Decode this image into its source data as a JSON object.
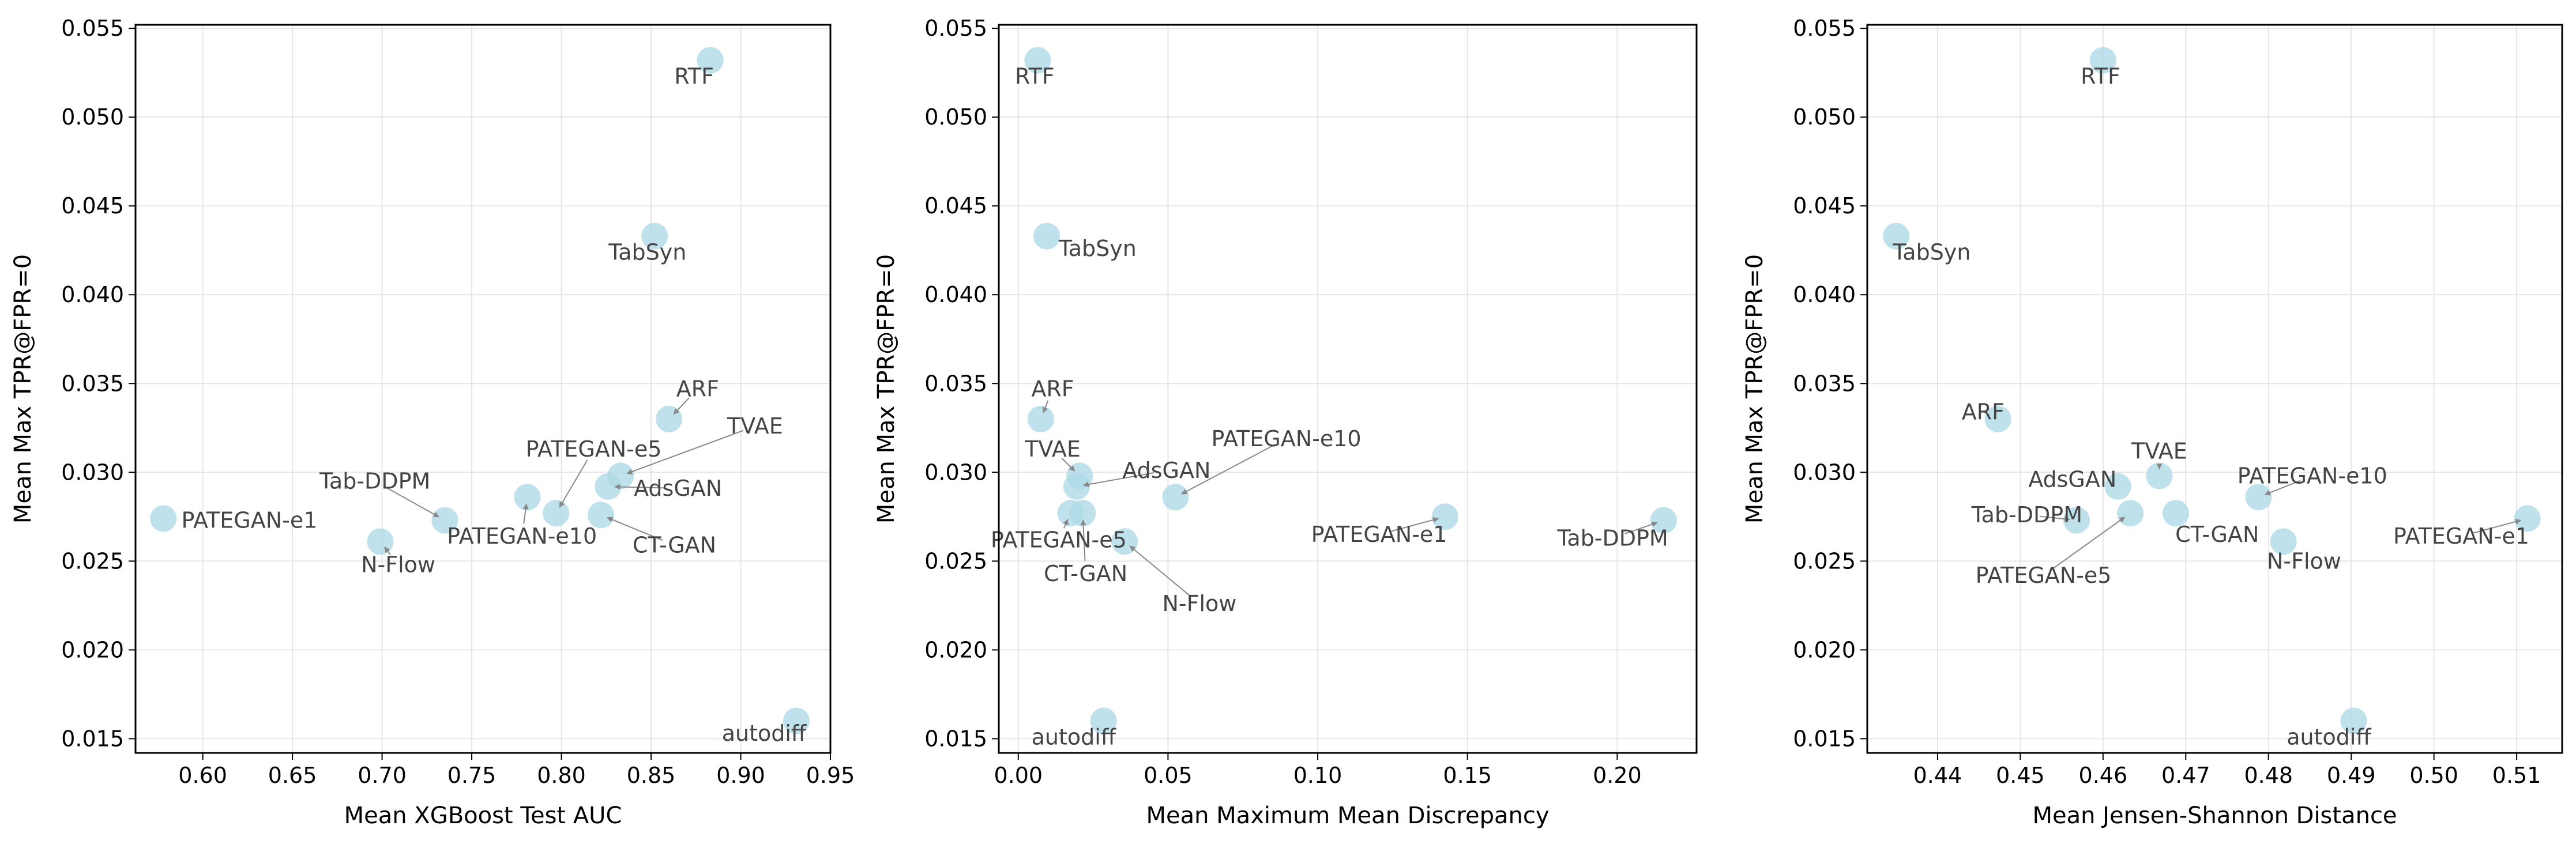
{
  "style": {
    "marker_color": "#add8e6",
    "grid_color": "#e6e6e6",
    "annotation_color": "#444444",
    "arrow_color": "#888888"
  },
  "chart_data": [
    {
      "type": "scatter",
      "title": "",
      "xlabel": "Mean XGBoost Test AUC",
      "ylabel": "Mean Max TPR@FPR=0",
      "xlim": [
        0.5625,
        0.95
      ],
      "ylim": [
        0.0142,
        0.0552
      ],
      "xticks": [
        0.6,
        0.65,
        0.7,
        0.75,
        0.8,
        0.85,
        0.9,
        0.95
      ],
      "xtick_labels": [
        "0.60",
        "0.65",
        "0.70",
        "0.75",
        "0.80",
        "0.85",
        "0.90",
        "0.95"
      ],
      "yticks": [
        0.015,
        0.02,
        0.025,
        0.03,
        0.035,
        0.04,
        0.045,
        0.05,
        0.055
      ],
      "ytick_labels": [
        "0.015",
        "0.020",
        "0.025",
        "0.030",
        "0.035",
        "0.040",
        "0.045",
        "0.050",
        "0.055"
      ],
      "grid": true,
      "points": [
        {
          "label": "RTF",
          "x": 0.883,
          "y": 0.0532,
          "text_x": 0.874,
          "text_y": 0.0523,
          "arrow": false
        },
        {
          "label": "TabSyn",
          "x": 0.852,
          "y": 0.0433,
          "text_x": 0.848,
          "text_y": 0.0424,
          "arrow": false
        },
        {
          "label": "ARF",
          "x": 0.86,
          "y": 0.033,
          "text_x": 0.876,
          "text_y": 0.0347,
          "arrow": true
        },
        {
          "label": "TVAE",
          "x": 0.833,
          "y": 0.0298,
          "text_x": 0.908,
          "text_y": 0.0326,
          "arrow": true
        },
        {
          "label": "PATEGAN-e5",
          "x": 0.797,
          "y": 0.0277,
          "text_x": 0.818,
          "text_y": 0.0313,
          "arrow": true
        },
        {
          "label": "AdsGAN",
          "x": 0.826,
          "y": 0.0292,
          "text_x": 0.865,
          "text_y": 0.0291,
          "arrow": true
        },
        {
          "label": "CT-GAN",
          "x": 0.822,
          "y": 0.0276,
          "text_x": 0.863,
          "text_y": 0.0259,
          "arrow": true
        },
        {
          "label": "PATEGAN-e10",
          "x": 0.781,
          "y": 0.0286,
          "text_x": 0.778,
          "text_y": 0.0264,
          "arrow": true
        },
        {
          "label": "Tab-DDPM",
          "x": 0.735,
          "y": 0.0273,
          "text_x": 0.696,
          "text_y": 0.0295,
          "arrow": true
        },
        {
          "label": "PATEGAN-e1",
          "x": 0.578,
          "y": 0.0274,
          "text_x": 0.626,
          "text_y": 0.0273,
          "arrow": false
        },
        {
          "label": "N-Flow",
          "x": 0.699,
          "y": 0.0261,
          "text_x": 0.709,
          "text_y": 0.0248,
          "arrow": true
        },
        {
          "label": "autodiff",
          "x": 0.931,
          "y": 0.016,
          "text_x": 0.913,
          "text_y": 0.0153,
          "arrow": false
        }
      ]
    },
    {
      "type": "scatter",
      "title": "",
      "xlabel": "Mean Maximum Mean Discrepancy",
      "ylabel": "Mean Max TPR@FPR=0",
      "xlim": [
        -0.0065,
        0.2265
      ],
      "ylim": [
        0.0142,
        0.0552
      ],
      "xticks": [
        0.0,
        0.05,
        0.1,
        0.15,
        0.2
      ],
      "xtick_labels": [
        "0.00",
        "0.05",
        "0.10",
        "0.15",
        "0.20"
      ],
      "yticks": [
        0.015,
        0.02,
        0.025,
        0.03,
        0.035,
        0.04,
        0.045,
        0.05,
        0.055
      ],
      "ytick_labels": [
        "0.015",
        "0.020",
        "0.025",
        "0.030",
        "0.035",
        "0.040",
        "0.045",
        "0.050",
        "0.055"
      ],
      "grid": true,
      "points": [
        {
          "label": "RTF",
          "x": 0.0065,
          "y": 0.0532,
          "text_x": 0.0055,
          "text_y": 0.0523,
          "arrow": false
        },
        {
          "label": "TabSyn",
          "x": 0.0095,
          "y": 0.0433,
          "text_x": 0.0265,
          "text_y": 0.0426,
          "arrow": false
        },
        {
          "label": "ARF",
          "x": 0.0075,
          "y": 0.033,
          "text_x": 0.0115,
          "text_y": 0.0347,
          "arrow": true
        },
        {
          "label": "TVAE",
          "x": 0.0205,
          "y": 0.0298,
          "text_x": 0.0115,
          "text_y": 0.0313,
          "arrow": true
        },
        {
          "label": "AdsGAN",
          "x": 0.0195,
          "y": 0.0292,
          "text_x": 0.0495,
          "text_y": 0.0301,
          "arrow": true
        },
        {
          "label": "PATEGAN-e10",
          "x": 0.0525,
          "y": 0.0286,
          "text_x": 0.0895,
          "text_y": 0.0319,
          "arrow": true
        },
        {
          "label": "PATEGAN-e5",
          "x": 0.0175,
          "y": 0.0277,
          "text_x": 0.0135,
          "text_y": 0.0262,
          "arrow": true
        },
        {
          "label": "CT-GAN",
          "x": 0.0215,
          "y": 0.0277,
          "text_x": 0.0225,
          "text_y": 0.0243,
          "arrow": true
        },
        {
          "label": "N-Flow",
          "x": 0.0355,
          "y": 0.0261,
          "text_x": 0.0605,
          "text_y": 0.0226,
          "arrow": true
        },
        {
          "label": "PATEGAN-e1",
          "x": 0.1425,
          "y": 0.0275,
          "text_x": 0.1205,
          "text_y": 0.0265,
          "arrow": true
        },
        {
          "label": "Tab-DDPM",
          "x": 0.2155,
          "y": 0.0273,
          "text_x": 0.1985,
          "text_y": 0.0263,
          "arrow": true
        },
        {
          "label": "autodiff",
          "x": 0.0285,
          "y": 0.016,
          "text_x": 0.0185,
          "text_y": 0.0151,
          "arrow": false
        }
      ]
    },
    {
      "type": "scatter",
      "title": "",
      "xlabel": "Mean Jensen-Shannon Distance",
      "ylabel": "Mean Max TPR@FPR=0",
      "xlim": [
        0.4315,
        0.5155
      ],
      "ylim": [
        0.0142,
        0.0552
      ],
      "xticks": [
        0.44,
        0.45,
        0.46,
        0.47,
        0.48,
        0.49,
        0.5,
        0.51
      ],
      "xtick_labels": [
        "0.44",
        "0.45",
        "0.46",
        "0.47",
        "0.48",
        "0.49",
        "0.50",
        "0.51"
      ],
      "yticks": [
        0.015,
        0.02,
        0.025,
        0.03,
        0.035,
        0.04,
        0.045,
        0.05,
        0.055
      ],
      "ytick_labels": [
        "0.015",
        "0.020",
        "0.025",
        "0.030",
        "0.035",
        "0.040",
        "0.045",
        "0.050",
        "0.055"
      ],
      "grid": true,
      "points": [
        {
          "label": "RTF",
          "x": 0.46,
          "y": 0.0532,
          "text_x": 0.4597,
          "text_y": 0.0523,
          "arrow": false
        },
        {
          "label": "TabSyn",
          "x": 0.435,
          "y": 0.0433,
          "text_x": 0.4393,
          "text_y": 0.0424,
          "arrow": false
        },
        {
          "label": "ARF",
          "x": 0.4473,
          "y": 0.033,
          "text_x": 0.4455,
          "text_y": 0.0334,
          "arrow": false
        },
        {
          "label": "TVAE",
          "x": 0.4668,
          "y": 0.0298,
          "text_x": 0.4668,
          "text_y": 0.0312,
          "arrow": true
        },
        {
          "label": "AdsGAN",
          "x": 0.4618,
          "y": 0.0292,
          "text_x": 0.4563,
          "text_y": 0.0296,
          "arrow": false
        },
        {
          "label": "PATEGAN-e10",
          "x": 0.4788,
          "y": 0.0286,
          "text_x": 0.4853,
          "text_y": 0.0298,
          "arrow": true
        },
        {
          "label": "Tab-DDPM",
          "x": 0.4568,
          "y": 0.0273,
          "text_x": 0.4508,
          "text_y": 0.0276,
          "arrow": true
        },
        {
          "label": "PATEGAN-e5",
          "x": 0.4633,
          "y": 0.0277,
          "text_x": 0.4528,
          "text_y": 0.0242,
          "arrow": true
        },
        {
          "label": "CT-GAN",
          "x": 0.4688,
          "y": 0.0277,
          "text_x": 0.4738,
          "text_y": 0.0265,
          "arrow": false
        },
        {
          "label": "N-Flow",
          "x": 0.4818,
          "y": 0.0261,
          "text_x": 0.4843,
          "text_y": 0.025,
          "arrow": false
        },
        {
          "label": "PATEGAN-e1",
          "x": 0.5113,
          "y": 0.0274,
          "text_x": 0.5033,
          "text_y": 0.0264,
          "arrow": true
        },
        {
          "label": "autodiff",
          "x": 0.4903,
          "y": 0.016,
          "text_x": 0.4873,
          "text_y": 0.0151,
          "arrow": false
        }
      ]
    }
  ]
}
